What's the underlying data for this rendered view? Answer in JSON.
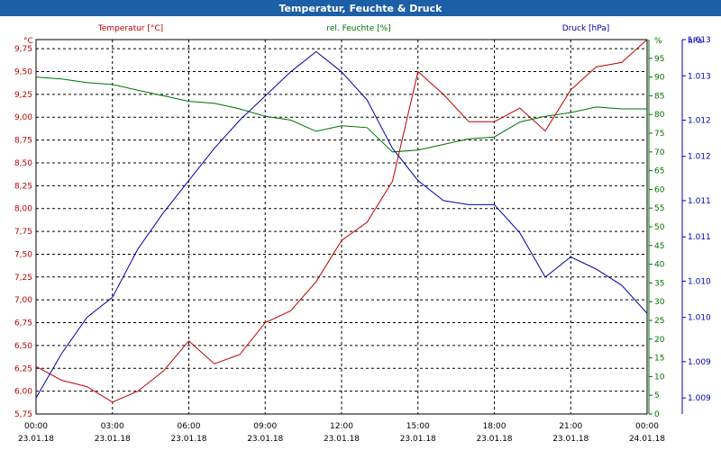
{
  "window": {
    "title": "Temperatur, Feuchte & Druck"
  },
  "chart_data": {
    "type": "line",
    "x": [
      "00:00",
      "01:00",
      "02:00",
      "03:00",
      "04:00",
      "05:00",
      "06:00",
      "07:00",
      "08:00",
      "09:00",
      "10:00",
      "11:00",
      "12:00",
      "13:00",
      "14:00",
      "15:00",
      "16:00",
      "17:00",
      "18:00",
      "19:00",
      "20:00",
      "21:00",
      "22:00",
      "23:00",
      "24:00"
    ],
    "x_ticks": [
      {
        "time": "00:00",
        "date": "23.01.18"
      },
      {
        "time": "03:00",
        "date": "23.01.18"
      },
      {
        "time": "06:00",
        "date": "23.01.18"
      },
      {
        "time": "09:00",
        "date": "23.01.18"
      },
      {
        "time": "12:00",
        "date": "23.01.18"
      },
      {
        "time": "15:00",
        "date": "23.01.18"
      },
      {
        "time": "18:00",
        "date": "23.01.18"
      },
      {
        "time": "21:00",
        "date": "23.01.18"
      },
      {
        "time": "00:00",
        "date": "24.01.18"
      }
    ],
    "series": [
      {
        "name": "Temperatur [°C]",
        "color": "#c00000",
        "axis": "left",
        "values": [
          6.27,
          6.12,
          6.05,
          5.88,
          6.0,
          6.22,
          6.55,
          6.3,
          6.4,
          6.75,
          6.88,
          7.2,
          7.65,
          7.85,
          8.3,
          9.5,
          9.25,
          8.95,
          8.95,
          9.1,
          8.85,
          9.3,
          9.55,
          9.6,
          9.85
        ]
      },
      {
        "name": "rel. Feuchte [%]",
        "color": "#007000",
        "axis": "right1",
        "values": [
          90,
          89.5,
          88.5,
          88,
          86.5,
          85,
          83.5,
          83,
          81.5,
          79.5,
          78.5,
          75.5,
          77,
          76.5,
          70,
          70.5,
          72,
          73.5,
          74,
          78,
          79.5,
          80.5,
          82,
          81.5,
          81.5
        ]
      },
      {
        "name": "Druck [hPa]",
        "color": "#0000b0",
        "axis": "right2",
        "values": [
          1008.9,
          1009.45,
          1009.9,
          1010.15,
          1010.75,
          1011.2,
          1011.6,
          1012.0,
          1012.35,
          1012.65,
          1012.95,
          1013.2,
          1012.95,
          1012.6,
          1012.0,
          1011.6,
          1011.35,
          1011.3,
          1011.3,
          1010.95,
          1010.4,
          1010.65,
          1010.5,
          1010.3,
          1009.95
        ]
      }
    ],
    "axes": {
      "left": {
        "label": "°C",
        "ylim": [
          5.75,
          9.85
        ],
        "ticks": [
          "5,75",
          "6,00",
          "6,25",
          "6,50",
          "6,75",
          "7,00",
          "7,25",
          "7,50",
          "7,75",
          "8,00",
          "8,25",
          "8,50",
          "8,75",
          "9,00",
          "9,25",
          "9,50",
          "9,75"
        ],
        "tick_values": [
          5.75,
          6.0,
          6.25,
          6.5,
          6.75,
          7.0,
          7.25,
          7.5,
          7.75,
          8.0,
          8.25,
          8.5,
          8.75,
          9.0,
          9.25,
          9.5,
          9.75
        ]
      },
      "right1": {
        "label": "%",
        "ylim": [
          0,
          100
        ],
        "ticks": [
          "0",
          "5",
          "10",
          "15",
          "20",
          "25",
          "30",
          "35",
          "40",
          "45",
          "50",
          "55",
          "60",
          "65",
          "70",
          "75",
          "80",
          "85",
          "90",
          "95"
        ],
        "tick_values": [
          0,
          5,
          10,
          15,
          20,
          25,
          30,
          35,
          40,
          45,
          50,
          55,
          60,
          65,
          70,
          75,
          80,
          85,
          90,
          95
        ]
      },
      "right2": {
        "label": "hPa",
        "ylim": [
          1008.7,
          1013.35
        ],
        "ticks": [
          "1.009",
          "1.009",
          "1.010",
          "1.010",
          "1.011",
          "1.011",
          "1.012",
          "1.012",
          "1.013",
          "1.013"
        ],
        "tick_values": [
          1008.9,
          1009.35,
          1009.9,
          1010.35,
          1010.9,
          1011.35,
          1011.9,
          1012.35,
          1012.9,
          1013.35
        ]
      }
    },
    "grid": true,
    "legend": "top"
  }
}
